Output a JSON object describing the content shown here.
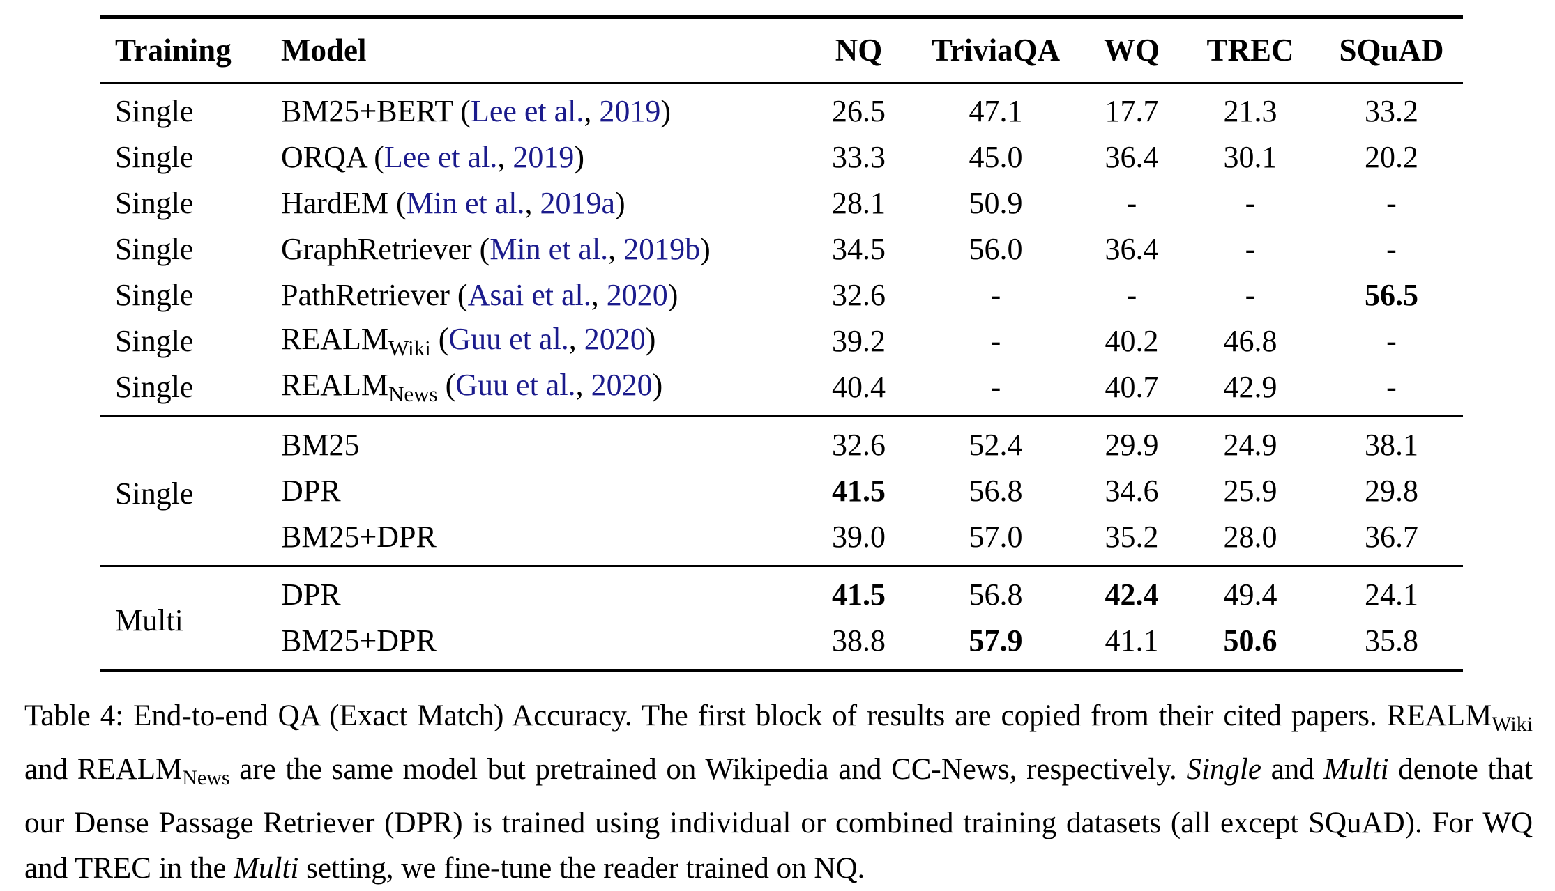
{
  "colors": {
    "background": "#ffffff",
    "text": "#000000",
    "citation_blue": "#1b1b8c"
  },
  "table": {
    "columns": [
      "Training",
      "Model",
      "NQ",
      "TriviaQA",
      "WQ",
      "TREC",
      "SQuAD"
    ],
    "blocks": [
      {
        "rows": [
          {
            "training": "Single",
            "model": [
              {
                "t": "BM25+BERT ("
              },
              {
                "t": "Lee et al.",
                "s": "cite"
              },
              {
                "t": ", "
              },
              {
                "t": "2019",
                "s": "cite"
              },
              {
                "t": ")"
              }
            ],
            "values": [
              {
                "v": "26.5"
              },
              {
                "v": "47.1"
              },
              {
                "v": "17.7"
              },
              {
                "v": "21.3"
              },
              {
                "v": "33.2"
              }
            ]
          },
          {
            "training": "Single",
            "model": [
              {
                "t": "ORQA ("
              },
              {
                "t": "Lee et al.",
                "s": "cite"
              },
              {
                "t": ", "
              },
              {
                "t": "2019",
                "s": "cite"
              },
              {
                "t": ")"
              }
            ],
            "values": [
              {
                "v": "33.3"
              },
              {
                "v": "45.0"
              },
              {
                "v": "36.4"
              },
              {
                "v": "30.1"
              },
              {
                "v": "20.2"
              }
            ]
          },
          {
            "training": "Single",
            "model": [
              {
                "t": "HardEM ("
              },
              {
                "t": "Min et al.",
                "s": "cite"
              },
              {
                "t": ", "
              },
              {
                "t": "2019a",
                "s": "cite"
              },
              {
                "t": ")"
              }
            ],
            "values": [
              {
                "v": "28.1"
              },
              {
                "v": "50.9"
              },
              {
                "v": "-"
              },
              {
                "v": "-"
              },
              {
                "v": "-"
              }
            ]
          },
          {
            "training": "Single",
            "model": [
              {
                "t": "GraphRetriever ("
              },
              {
                "t": "Min et al.",
                "s": "cite"
              },
              {
                "t": ", "
              },
              {
                "t": "2019b",
                "s": "cite"
              },
              {
                "t": ")"
              }
            ],
            "values": [
              {
                "v": "34.5"
              },
              {
                "v": "56.0"
              },
              {
                "v": "36.4"
              },
              {
                "v": "-"
              },
              {
                "v": "-"
              }
            ]
          },
          {
            "training": "Single",
            "model": [
              {
                "t": "PathRetriever ("
              },
              {
                "t": "Asai et al.",
                "s": "cite"
              },
              {
                "t": ", "
              },
              {
                "t": "2020",
                "s": "cite"
              },
              {
                "t": ")"
              }
            ],
            "values": [
              {
                "v": "32.6"
              },
              {
                "v": "-"
              },
              {
                "v": "-"
              },
              {
                "v": "-"
              },
              {
                "v": "56.5",
                "b": true
              }
            ]
          },
          {
            "training": "Single",
            "model": [
              {
                "t": "REALM"
              },
              {
                "t": "Wiki",
                "s": "sub"
              },
              {
                "t": " ("
              },
              {
                "t": "Guu et al.",
                "s": "cite"
              },
              {
                "t": ", "
              },
              {
                "t": "2020",
                "s": "cite"
              },
              {
                "t": ")"
              }
            ],
            "values": [
              {
                "v": "39.2"
              },
              {
                "v": "-"
              },
              {
                "v": "40.2"
              },
              {
                "v": "46.8"
              },
              {
                "v": "-"
              }
            ]
          },
          {
            "training": "Single",
            "model": [
              {
                "t": "REALM"
              },
              {
                "t": "News",
                "s": "sub"
              },
              {
                "t": " ("
              },
              {
                "t": "Guu et al.",
                "s": "cite"
              },
              {
                "t": ", "
              },
              {
                "t": "2020",
                "s": "cite"
              },
              {
                "t": ")"
              }
            ],
            "values": [
              {
                "v": "40.4"
              },
              {
                "v": "-"
              },
              {
                "v": "40.7"
              },
              {
                "v": "42.9"
              },
              {
                "v": "-"
              }
            ]
          }
        ]
      },
      {
        "label": "Single",
        "rows": [
          {
            "model": [
              {
                "t": "BM25"
              }
            ],
            "values": [
              {
                "v": "32.6"
              },
              {
                "v": "52.4"
              },
              {
                "v": "29.9"
              },
              {
                "v": "24.9"
              },
              {
                "v": "38.1"
              }
            ]
          },
          {
            "model": [
              {
                "t": "DPR"
              }
            ],
            "values": [
              {
                "v": "41.5",
                "b": true
              },
              {
                "v": "56.8"
              },
              {
                "v": "34.6"
              },
              {
                "v": "25.9"
              },
              {
                "v": "29.8"
              }
            ]
          },
          {
            "model": [
              {
                "t": "BM25+DPR"
              }
            ],
            "values": [
              {
                "v": "39.0"
              },
              {
                "v": "57.0"
              },
              {
                "v": "35.2"
              },
              {
                "v": "28.0"
              },
              {
                "v": "36.7"
              }
            ]
          }
        ]
      },
      {
        "label": "Multi",
        "rows": [
          {
            "model": [
              {
                "t": "DPR"
              }
            ],
            "values": [
              {
                "v": "41.5",
                "b": true
              },
              {
                "v": "56.8"
              },
              {
                "v": "42.4",
                "b": true
              },
              {
                "v": "49.4"
              },
              {
                "v": "24.1"
              }
            ]
          },
          {
            "model": [
              {
                "t": "BM25+DPR"
              }
            ],
            "values": [
              {
                "v": "38.8"
              },
              {
                "v": "57.9",
                "b": true
              },
              {
                "v": "41.1"
              },
              {
                "v": "50.6",
                "b": true
              },
              {
                "v": "35.8"
              }
            ]
          }
        ]
      }
    ]
  },
  "caption": {
    "segments": [
      {
        "t": "Table 4: End-to-end QA (Exact Match) Accuracy. The first block of results are copied from their cited papers. REALM"
      },
      {
        "t": "Wiki",
        "s": "sub"
      },
      {
        "t": " and REALM"
      },
      {
        "t": "News",
        "s": "sub"
      },
      {
        "t": " are the same model but pretrained on Wikipedia and CC-News, respectively. "
      },
      {
        "t": "Single",
        "s": "italic"
      },
      {
        "t": " and "
      },
      {
        "t": "Multi",
        "s": "italic"
      },
      {
        "t": " denote that our Dense Passage Retriever (DPR) is trained using individual or combined training datasets (all except SQuAD). For WQ and TREC in the "
      },
      {
        "t": "Multi",
        "s": "italic"
      },
      {
        "t": " setting, we fine-tune the reader trained on NQ."
      }
    ]
  }
}
